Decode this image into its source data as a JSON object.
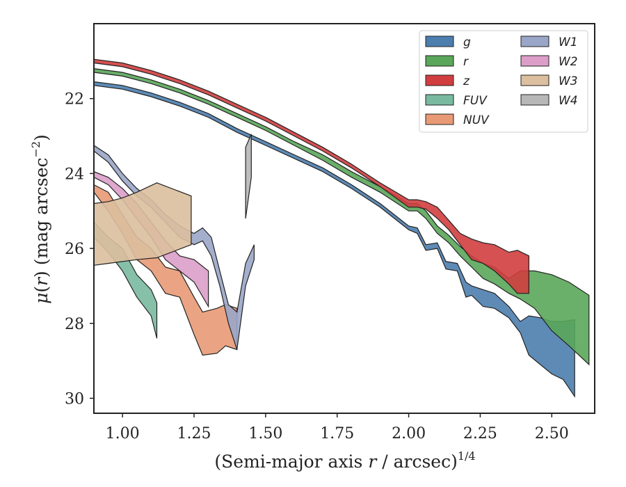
{
  "chart_data": {
    "type": "area",
    "xlabel": "(Semi-major axis r / arcsec)^1/4",
    "ylabel": "μ(r) (mag arcsec^−2)",
    "xlim": [
      0.9,
      2.65
    ],
    "ylim": [
      30.4,
      20.0
    ],
    "y_inverted": true,
    "x_ticks": [
      "1.00",
      "1.25",
      "1.50",
      "1.75",
      "2.00",
      "2.25",
      "2.50"
    ],
    "y_ticks": [
      "22",
      "24",
      "26",
      "28",
      "30"
    ],
    "legend_position": "top-right",
    "legend_columns": 2,
    "series": [
      {
        "name": "g",
        "color": "#4c7eae",
        "x": [
          0.9,
          1.0,
          1.1,
          1.2,
          1.3,
          1.4,
          1.5,
          1.6,
          1.7,
          1.8,
          1.9,
          2.0,
          2.03,
          2.06,
          2.1,
          2.13,
          2.17,
          2.2,
          2.22,
          2.26,
          2.3,
          2.35,
          2.39,
          2.42,
          2.46,
          2.5,
          2.54,
          2.58
        ],
        "lower": [
          21.55,
          21.65,
          21.85,
          22.1,
          22.4,
          22.8,
          23.15,
          23.5,
          23.85,
          24.3,
          24.8,
          25.4,
          25.45,
          25.9,
          25.85,
          26.35,
          26.4,
          26.9,
          27.0,
          27.1,
          27.2,
          27.55,
          27.95,
          27.8,
          27.85,
          27.95,
          27.95,
          27.9
        ],
        "upper": [
          21.65,
          21.75,
          21.95,
          22.2,
          22.5,
          22.9,
          23.25,
          23.6,
          23.95,
          24.4,
          24.9,
          25.5,
          25.6,
          26.05,
          26.0,
          26.55,
          26.6,
          27.3,
          27.25,
          27.55,
          27.6,
          27.85,
          28.25,
          28.85,
          29.1,
          29.35,
          29.5,
          29.95
        ]
      },
      {
        "name": "r",
        "color": "#5aa65a",
        "x": [
          0.9,
          1.0,
          1.1,
          1.2,
          1.3,
          1.4,
          1.5,
          1.6,
          1.7,
          1.8,
          1.9,
          2.0,
          2.03,
          2.06,
          2.1,
          2.14,
          2.18,
          2.22,
          2.26,
          2.3,
          2.35,
          2.39,
          2.44,
          2.5,
          2.56,
          2.63
        ],
        "lower": [
          21.2,
          21.3,
          21.5,
          21.75,
          22.05,
          22.4,
          22.75,
          23.15,
          23.5,
          23.95,
          24.35,
          24.8,
          24.8,
          25.0,
          25.4,
          25.65,
          25.95,
          26.2,
          26.4,
          26.5,
          26.8,
          26.6,
          26.6,
          26.7,
          26.9,
          27.25
        ],
        "upper": [
          21.3,
          21.4,
          21.6,
          21.85,
          22.15,
          22.5,
          22.85,
          23.25,
          23.65,
          24.1,
          24.5,
          25.0,
          25.0,
          25.2,
          25.6,
          25.85,
          26.2,
          26.5,
          26.8,
          26.95,
          27.2,
          27.35,
          27.6,
          28.2,
          28.6,
          29.1
        ]
      },
      {
        "name": "z",
        "color": "#d03e3f",
        "x": [
          0.9,
          1.0,
          1.1,
          1.2,
          1.3,
          1.4,
          1.5,
          1.6,
          1.7,
          1.8,
          1.9,
          2.0,
          2.03,
          2.06,
          2.1,
          2.14,
          2.18,
          2.22,
          2.26,
          2.3,
          2.35,
          2.38,
          2.42
        ],
        "lower": [
          20.95,
          21.05,
          21.25,
          21.5,
          21.8,
          22.15,
          22.5,
          22.9,
          23.3,
          23.75,
          24.25,
          24.7,
          24.7,
          24.75,
          24.9,
          25.25,
          25.6,
          25.75,
          25.85,
          25.9,
          26.1,
          26.05,
          26.2
        ],
        "upper": [
          21.05,
          21.15,
          21.35,
          21.6,
          21.9,
          22.25,
          22.6,
          23.0,
          23.4,
          23.85,
          24.35,
          24.9,
          24.9,
          24.95,
          25.2,
          25.5,
          25.9,
          26.3,
          26.4,
          26.6,
          26.95,
          27.2,
          27.2
        ]
      },
      {
        "name": "FUV",
        "color": "#79b9a0",
        "x": [
          0.9,
          0.95,
          1.0,
          1.05,
          1.1,
          1.12
        ],
        "lower": [
          25.3,
          25.7,
          26.0,
          26.7,
          27.1,
          27.45
        ],
        "upper": [
          25.7,
          26.1,
          26.6,
          27.3,
          27.8,
          28.4
        ]
      },
      {
        "name": "NUV",
        "color": "#e89a76",
        "x": [
          0.9,
          0.95,
          1.0,
          1.05,
          1.1,
          1.15,
          1.2,
          1.25,
          1.28,
          1.33,
          1.36,
          1.4
        ],
        "lower": [
          24.3,
          24.5,
          25.1,
          25.7,
          26.0,
          26.5,
          26.6,
          27.3,
          27.7,
          27.6,
          27.5,
          27.6
        ],
        "upper": [
          24.5,
          25.0,
          25.6,
          26.3,
          26.6,
          27.2,
          27.3,
          28.3,
          28.85,
          28.8,
          28.6,
          28.7
        ]
      },
      {
        "name": "W1",
        "color": "#9aa6c8",
        "x": [
          0.9,
          0.95,
          1.0,
          1.05,
          1.1,
          1.15,
          1.2,
          1.25,
          1.28,
          1.31,
          1.34,
          1.37,
          1.4,
          1.43,
          1.46
        ],
        "lower": [
          23.25,
          23.5,
          24.0,
          24.4,
          24.7,
          25.1,
          25.4,
          25.6,
          25.45,
          25.7,
          26.6,
          27.5,
          27.7,
          26.4,
          25.9
        ],
        "upper": [
          23.4,
          23.7,
          24.2,
          24.6,
          24.9,
          25.3,
          25.7,
          25.9,
          25.8,
          26.2,
          27.0,
          28.0,
          28.7,
          27.0,
          26.3
        ]
      },
      {
        "name": "W2",
        "color": "#dc9ec9",
        "x": [
          0.9,
          0.95,
          1.0,
          1.05,
          1.1,
          1.15,
          1.2,
          1.25,
          1.3
        ],
        "lower": [
          23.95,
          24.1,
          24.4,
          24.8,
          25.3,
          25.8,
          26.2,
          26.3,
          26.6
        ],
        "upper": [
          24.1,
          24.3,
          24.7,
          25.2,
          25.7,
          26.3,
          26.6,
          26.9,
          27.55
        ]
      },
      {
        "name": "W3",
        "color": "#dbbf9f",
        "x": [
          0.9,
          0.95,
          1.0,
          1.05,
          1.12,
          1.24
        ],
        "lower": [
          24.8,
          24.75,
          24.65,
          24.5,
          24.25,
          24.6
        ],
        "upper": [
          26.45,
          26.4,
          26.35,
          26.3,
          26.25,
          25.9
        ]
      },
      {
        "name": "W4",
        "color": "#b7b7b7",
        "x": [
          1.43,
          1.45
        ],
        "lower": [
          23.3,
          22.95
        ],
        "upper": [
          25.2,
          24.1
        ]
      }
    ]
  }
}
